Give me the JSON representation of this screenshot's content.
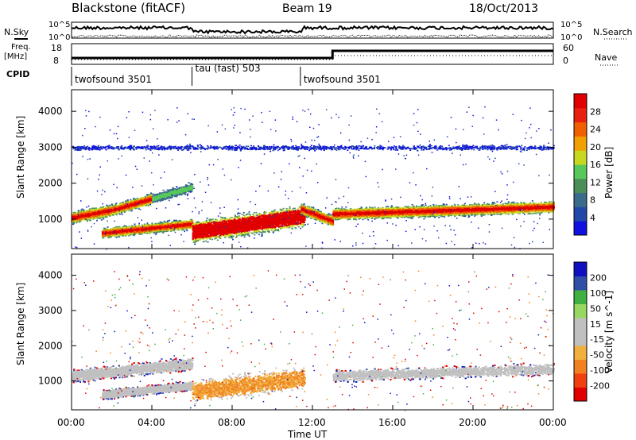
{
  "header": {
    "station": "Blackstone (fitACF)",
    "beam": "Beam 19",
    "date": "18/Oct/2013"
  },
  "top_panels": {
    "nsky_label": "N.Sky",
    "nsearch_label": "N.Search",
    "freq_label_1": "Freq.",
    "freq_label_2": "[MHz]",
    "nave_label": "Nave",
    "cpid_label": "CPID",
    "noise_left_ticks": [
      "10^5",
      "10^0"
    ],
    "noise_right_ticks": [
      "10^5",
      "10^0"
    ],
    "freq_left_ticks": [
      "18",
      "8"
    ],
    "freq_right_ticks": [
      "60",
      "0"
    ]
  },
  "cpid_segments": [
    {
      "start": 0,
      "end": 6,
      "label": "twofsound 3501"
    },
    {
      "start": 6,
      "end": 11.4,
      "label": "tau (fast) 503"
    },
    {
      "start": 11.4,
      "end": 24,
      "label": "twofsound 3501"
    }
  ],
  "axes": {
    "ylabel": "Slant Range [km]",
    "xlabel": "Time UT",
    "y_ticks": [
      "1000",
      "2000",
      "3000",
      "4000"
    ],
    "x_ticks": [
      "00:00",
      "04:00",
      "08:00",
      "12:00",
      "16:00",
      "20:00",
      "00:00"
    ]
  },
  "colors": {
    "power": [
      "#1010e0",
      "#2048a8",
      "#3a6a8c",
      "#4a8f58",
      "#58c85a",
      "#c8d820",
      "#f0a000",
      "#f06000",
      "#e82010",
      "#e00000"
    ],
    "velocity": [
      "#e00000",
      "#f04010",
      "#f08020",
      "#f0b040",
      "#c0c0c0",
      "#c0c0c0",
      "#98d860",
      "#40b040",
      "#3050a8",
      "#1010c0"
    ]
  },
  "chart_data": [
    {
      "type": "heatmap",
      "title": "Power",
      "x_range_hours": [
        0,
        24
      ],
      "y_range_km": [
        180,
        4600
      ],
      "colorbar": {
        "label": "Power [dB]",
        "ticks": [
          "4",
          "8",
          "12",
          "16",
          "20",
          "24",
          "28"
        ],
        "range": [
          0,
          30
        ]
      },
      "scatter_bands": [
        {
          "t": [
            0,
            2
          ],
          "center_km": [
            1050,
            1260
          ],
          "width_km": 260,
          "level": "strong"
        },
        {
          "t": [
            2,
            4
          ],
          "center_km": [
            1260,
            1580
          ],
          "width_km": 240,
          "level": "strong"
        },
        {
          "t": [
            4,
            6
          ],
          "center_km": [
            1580,
            1900
          ],
          "width_km": 220,
          "level": "medium"
        },
        {
          "t": [
            1.5,
            6
          ],
          "center_km": [
            620,
            880
          ],
          "width_km": 220,
          "level": "strong"
        },
        {
          "t": [
            6,
            11.6
          ],
          "center_km": [
            650,
            1100
          ],
          "width_km": 500,
          "level": "very strong"
        },
        {
          "t": [
            11.4,
            13
          ],
          "center_km": [
            1300,
            950
          ],
          "width_km": 250,
          "level": "strong"
        },
        {
          "t": [
            13,
            24
          ],
          "center_km": [
            1150,
            1350
          ],
          "width_km": 260,
          "level": "strong"
        },
        {
          "t": [
            0,
            24
          ],
          "center_km": [
            3000,
            3000
          ],
          "width_km": 120,
          "level": "weak"
        }
      ]
    },
    {
      "type": "heatmap",
      "title": "Velocity",
      "x_range_hours": [
        0,
        24
      ],
      "y_range_km": [
        180,
        4600
      ],
      "colorbar": {
        "label": "Velocity [m s^-1]",
        "ticks": [
          "-200",
          "-100",
          "-50",
          "-15",
          "15",
          "50",
          "100",
          "200"
        ],
        "range": [
          -250,
          250
        ]
      },
      "scatter_bands": [
        {
          "t": [
            0,
            6
          ],
          "center_km": [
            1150,
            1500
          ],
          "width_km": 300,
          "velocity": "near zero with +/-100 edges"
        },
        {
          "t": [
            1.5,
            6
          ],
          "center_km": [
            620,
            880
          ],
          "width_km": 220,
          "velocity": "near zero with +/-100 edges"
        },
        {
          "t": [
            6,
            11.6
          ],
          "center_km": [
            700,
            1100
          ],
          "width_km": 500,
          "velocity": "-15 to -50"
        },
        {
          "t": [
            13,
            24
          ],
          "center_km": [
            1150,
            1350
          ],
          "width_km": 280,
          "velocity": "near zero"
        }
      ]
    }
  ]
}
